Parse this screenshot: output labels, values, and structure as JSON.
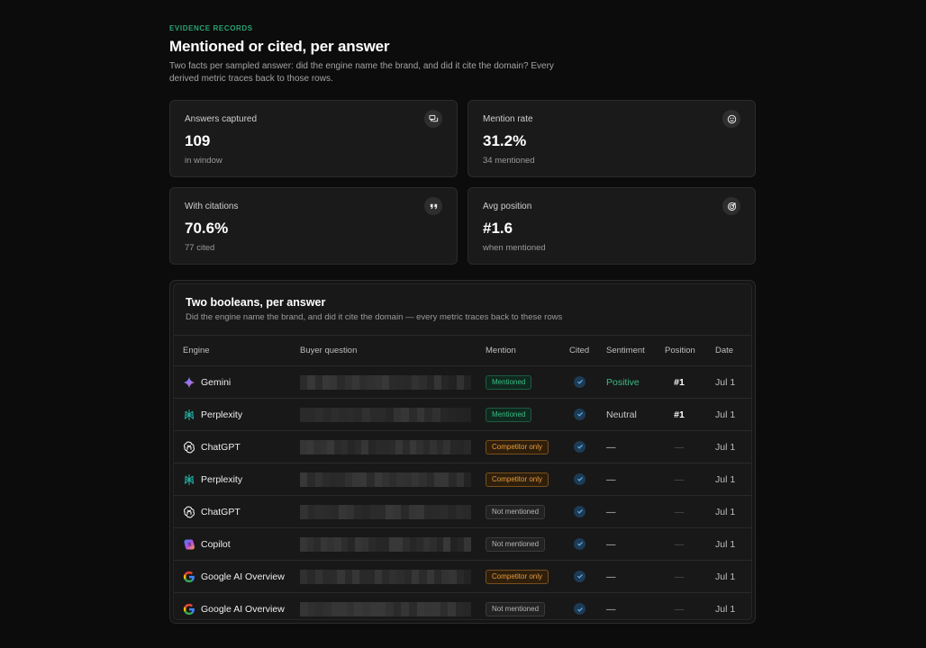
{
  "header": {
    "eyebrow": "EVIDENCE RECORDS",
    "title": "Mentioned or cited, per answer",
    "lede": "Two facts per sampled answer: did the engine name the brand, and did it cite the domain? Every derived metric traces back to those rows."
  },
  "stats": [
    {
      "label": "Answers captured",
      "value": "109",
      "sub": "in window",
      "icon": "chat-bubbles-icon"
    },
    {
      "label": "Mention rate",
      "value": "31.2%",
      "sub": "34 mentioned",
      "icon": "smile-icon"
    },
    {
      "label": "With citations",
      "value": "70.6%",
      "sub": "77 cited",
      "icon": "quote-icon"
    },
    {
      "label": "Avg position",
      "value": "#1.6",
      "sub": "when mentioned",
      "icon": "target-icon"
    }
  ],
  "table": {
    "title": "Two booleans, per answer",
    "subtitle": "Did the engine name the brand, and did it cite the domain — every metric traces back to these rows",
    "columns": [
      "Engine",
      "Buyer question",
      "Mention",
      "Cited",
      "Sentiment",
      "Position",
      "Date"
    ],
    "rows": [
      {
        "engine": "Gemini",
        "icon": "gemini-icon",
        "mention": "Mentioned",
        "mention_kind": "mentioned",
        "sentiment": "Positive",
        "position": "#1",
        "date": "Jul 1"
      },
      {
        "engine": "Perplexity",
        "icon": "perplexity-icon",
        "mention": "Mentioned",
        "mention_kind": "mentioned",
        "sentiment": "Neutral",
        "position": "#1",
        "date": "Jul 1"
      },
      {
        "engine": "ChatGPT",
        "icon": "chatgpt-icon",
        "mention": "Competitor only",
        "mention_kind": "competitor",
        "sentiment": "—",
        "position": "—",
        "date": "Jul 1"
      },
      {
        "engine": "Perplexity",
        "icon": "perplexity-icon",
        "mention": "Competitor only",
        "mention_kind": "competitor",
        "sentiment": "—",
        "position": "—",
        "date": "Jul 1"
      },
      {
        "engine": "ChatGPT",
        "icon": "chatgpt-icon",
        "mention": "Not mentioned",
        "mention_kind": "not",
        "sentiment": "—",
        "position": "—",
        "date": "Jul 1"
      },
      {
        "engine": "Copilot",
        "icon": "copilot-icon",
        "mention": "Not mentioned",
        "mention_kind": "not",
        "sentiment": "—",
        "position": "—",
        "date": "Jul 1"
      },
      {
        "engine": "Google AI Overview",
        "icon": "google-icon",
        "mention": "Competitor only",
        "mention_kind": "competitor",
        "sentiment": "—",
        "position": "—",
        "date": "Jul 1"
      },
      {
        "engine": "Google AI Overview",
        "icon": "google-icon",
        "mention": "Not mentioned",
        "mention_kind": "not",
        "sentiment": "—",
        "position": "—",
        "date": "Jul 1"
      }
    ]
  },
  "colors": {
    "accent_green": "#2aa374",
    "competitor_orange": "#e89a3c",
    "check_blue": "#1d3b55"
  }
}
